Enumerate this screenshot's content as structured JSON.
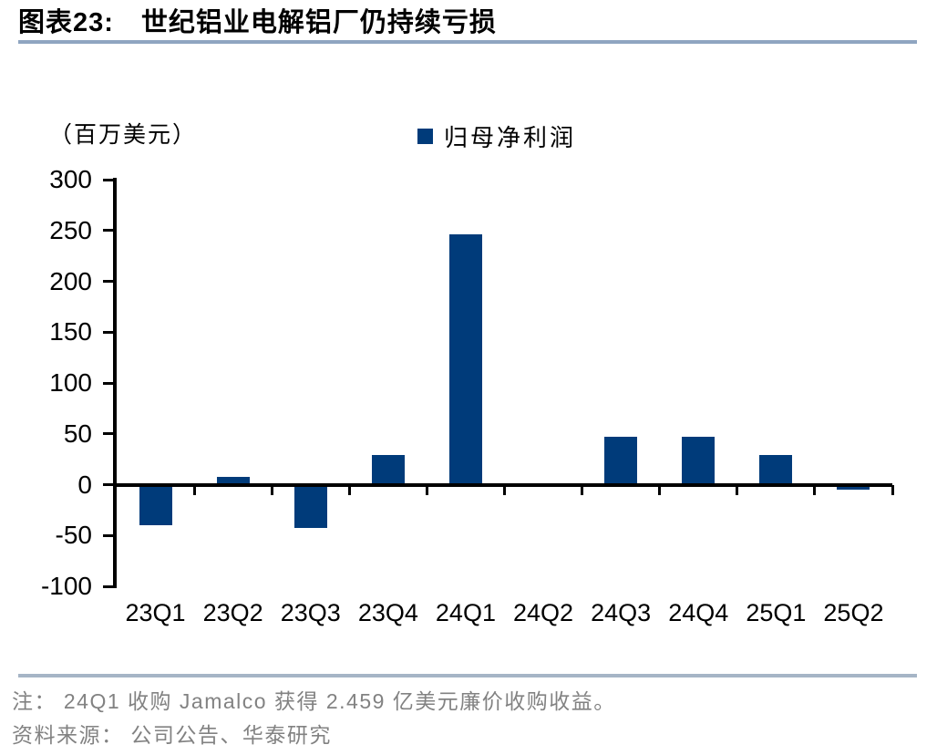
{
  "figure": {
    "label": "图表23:",
    "title": "世纪铝业电解铝厂仍持续亏损"
  },
  "chart_data": {
    "type": "bar",
    "title": "世纪铝业电解铝厂仍持续亏损",
    "categories": [
      "23Q1",
      "23Q2",
      "23Q3",
      "23Q4",
      "24Q1",
      "24Q2",
      "24Q3",
      "24Q4",
      "25Q1",
      "25Q2"
    ],
    "series": [
      {
        "name": "归母净利润",
        "values": [
          -40,
          8,
          -43,
          29,
          246,
          -2,
          47,
          47,
          29,
          -5
        ]
      }
    ],
    "xlabel": "",
    "ylabel": "（百万美元）",
    "ylim": [
      -100,
      300
    ],
    "ytick_step": 50,
    "yticks": [
      300,
      250,
      200,
      150,
      100,
      50,
      0,
      -50,
      -100
    ],
    "grid": false,
    "legend_position": "top-center",
    "bar_color": "#003B7A"
  },
  "footer": {
    "note": "注： 24Q1 收购 Jamalco 获得 2.459 亿美元廉价收购收益。",
    "source": "资料来源： 公司公告、华泰研究"
  },
  "colors": {
    "bar": "#003B7A",
    "title_rule": "#8FA5C1",
    "footer_rule": "#A6B5C6",
    "axis": "#000000",
    "footnote_text": "#828282"
  }
}
